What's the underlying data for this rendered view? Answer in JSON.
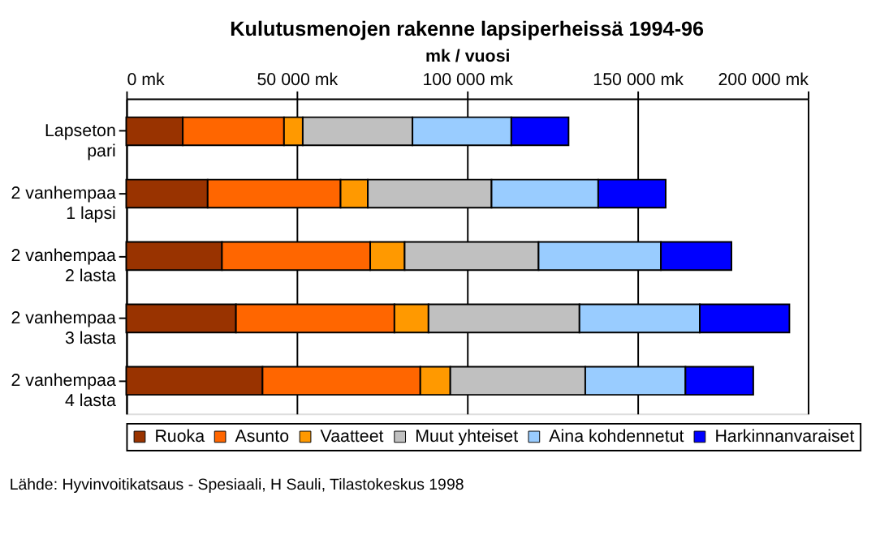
{
  "chart_data": {
    "type": "bar",
    "orientation": "horizontal",
    "stacked": true,
    "title": "Kulutusmenojen rakenne lapsiperheissä 1994-96",
    "xlabel": "mk / vuosi",
    "categories": [
      "Lapseton\npari",
      "2 vanhempaa\n1 lapsi",
      "2 vanhempaa\n2 lasta",
      "2 vanhempaa\n3 lasta",
      "2 vanhempaa\n4 lasta"
    ],
    "series": [
      {
        "name": "Ruoka",
        "color": "#993300",
        "values": [
          16600,
          23900,
          28100,
          32200,
          40000
        ]
      },
      {
        "name": "Asunto",
        "color": "#ff6600",
        "values": [
          29700,
          39000,
          43500,
          46500,
          46300
        ]
      },
      {
        "name": "Vaatteet",
        "color": "#ff9900",
        "values": [
          5500,
          8000,
          10100,
          10000,
          8800
        ]
      },
      {
        "name": "Muut yhteiset",
        "color": "#c0c0c0",
        "values": [
          32200,
          36300,
          39300,
          44300,
          39600
        ]
      },
      {
        "name": "Aina kohdennetut",
        "color": "#99ccff",
        "values": [
          29000,
          31300,
          35900,
          35300,
          29400
        ]
      },
      {
        "name": "Harkinnanvaraiset",
        "color": "#0000ff",
        "values": [
          16800,
          19800,
          20700,
          26300,
          19900
        ]
      }
    ],
    "xlim": [
      0,
      200000
    ],
    "xticks": [
      {
        "value": 0,
        "label": "0 mk"
      },
      {
        "value": 50000,
        "label": "50 000 mk"
      },
      {
        "value": 100000,
        "label": "100 000 mk"
      },
      {
        "value": 150000,
        "label": "150 000 mk"
      },
      {
        "value": 200000,
        "label": "200 000 mk"
      }
    ],
    "grid": "x",
    "legend": "bottom",
    "annotations": [
      "Lähde: Hyvinvoitikatsaus - Spesiaali, H Sauli, Tilastokeskus 1998"
    ]
  }
}
